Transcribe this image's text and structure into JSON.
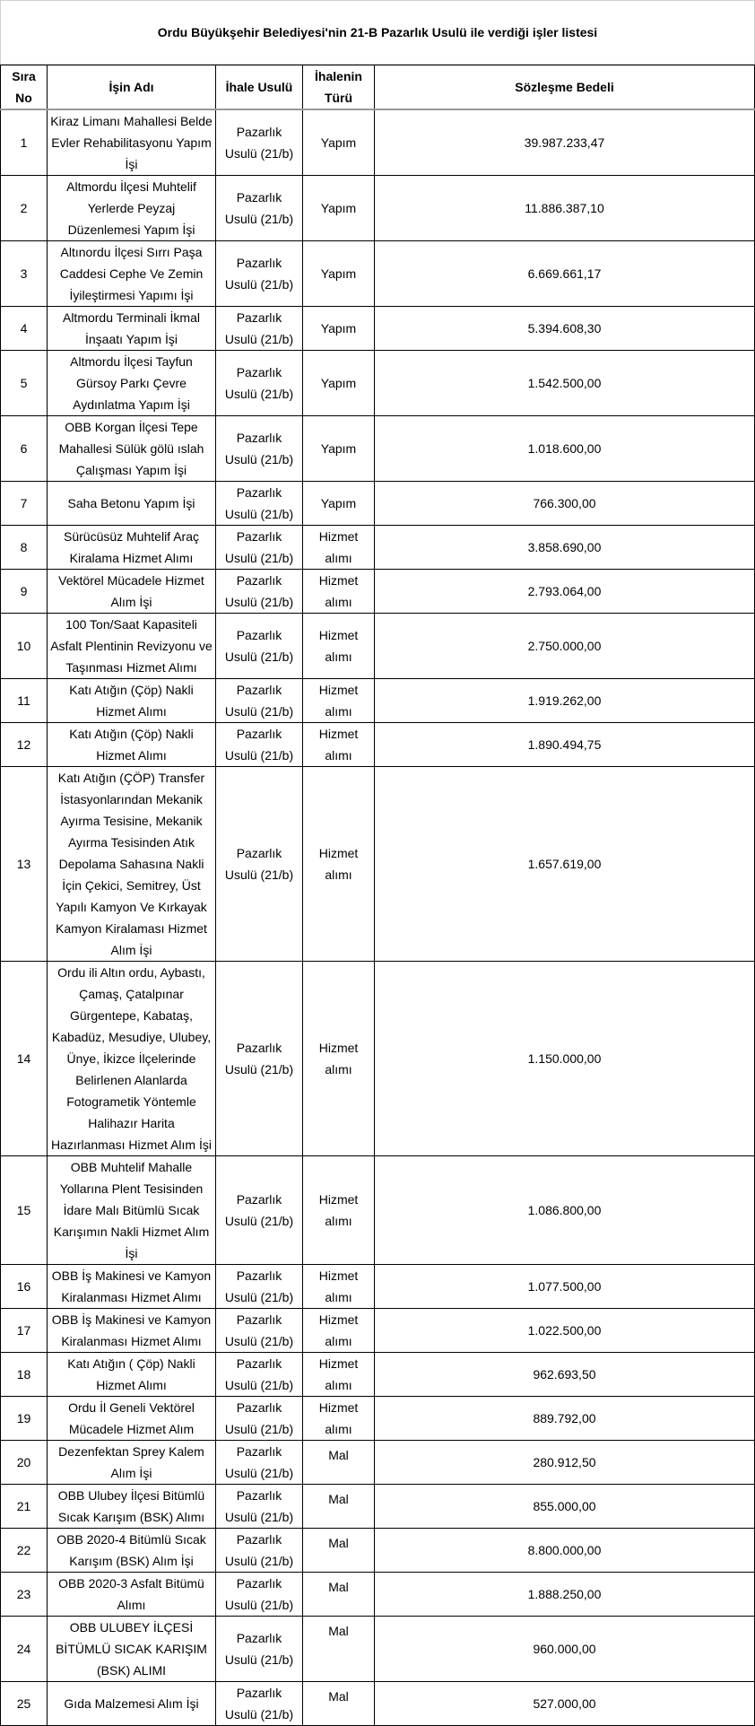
{
  "title": "Ordu Büyükşehir Belediyesi'nin 21-B Pazarlık Usulü ile verdiği işler listesi",
  "headers": [
    "Sıra No",
    "İşin Adı",
    "İhale Usulü",
    "İhalenin Türü",
    "Sözleşme Bedeli"
  ],
  "rows": [
    {
      "no": "1",
      "name": "Kiraz Limanı Mahallesi Belde Evler Rehabilitasyonu Yapım İşi",
      "method": "Pazarlık Usulü (21/b)",
      "type": "Yapım",
      "amount": "39.987.233,47"
    },
    {
      "no": "2",
      "name": "Altmordu İlçesi Muhtelif Yerlerde Peyzaj Düzenlemesi Yapım İşi",
      "method": "Pazarlık Usulü (21/b)",
      "type": "Yapım",
      "amount": "11.886.387,10"
    },
    {
      "no": "3",
      "name": "Altınordu İlçesi Sırrı Paşa Caddesi Cephe Ve Zemin İyileştirmesi Yapımı İşi",
      "method": "Pazarlık Usulü (21/b)",
      "type": "Yapım",
      "amount": "6.669.661,17"
    },
    {
      "no": "4",
      "name": "Altmordu Terminali İkmal İnşaatı Yapım İşi",
      "method": "Pazarlık Usulü (21/b)",
      "type": "Yapım",
      "amount": "5.394.608,30"
    },
    {
      "no": "5",
      "name": "Altmordu İlçesi Tayfun Gürsoy Parkı Çevre Aydınlatma Yapım İşi",
      "method": "Pazarlık Usulü (21/b)",
      "type": "Yapım",
      "amount": "1.542.500,00"
    },
    {
      "no": "6",
      "name": "OBB Korgan İlçesi Tepe Mahallesi Sülük gölü ıslah Çalışması Yapım İşi",
      "method": "Pazarlık Usulü (21/b)",
      "type": "Yapım",
      "amount": "1.018.600,00"
    },
    {
      "no": "7",
      "name": "Saha Betonu Yapım İşi",
      "method": "Pazarlık Usulü (21/b)",
      "type": "Yapım",
      "amount": "766.300,00"
    },
    {
      "no": "8",
      "name": "Sürücüsüz Muhtelif Araç Kiralama Hizmet Alımı",
      "method": "Pazarlık Usulü (21/b)",
      "type": "Hizmet alımı",
      "amount": "3.858.690,00"
    },
    {
      "no": "9",
      "name": "Vektörel Mücadele Hizmet Alım İşi",
      "method": "Pazarlık Usulü (21/b)",
      "type": "Hizmet alımı",
      "amount": "2.793.064,00"
    },
    {
      "no": "10",
      "name": "100 Ton/Saat Kapasiteli Asfalt Plentinin Revizyonu ve Taşınması Hizmet Alımı",
      "method": "Pazarlık Usulü (21/b)",
      "type": "Hizmet alımı",
      "amount": "2.750.000,00"
    },
    {
      "no": "11",
      "name": "Katı Atığın (Çöp) Nakli Hizmet Alımı",
      "method": "Pazarlık Usulü (21/b)",
      "type": "Hizmet alımı",
      "amount": "1.919.262,00"
    },
    {
      "no": "12",
      "name": "Katı Atığın (Çöp) Nakli Hizmet Alımı",
      "method": "Pazarlık Usulü (21/b)",
      "type": "Hizmet alımı",
      "amount": "1.890.494,75"
    },
    {
      "no": "13",
      "name": "Katı Atığın (ÇÖP) Transfer İstasyonlarından Mekanik Ayırma Tesisine, Mekanik Ayırma Tesisinden Atık Depolama Sahasına Nakli İçin Çekici, Semitrey, Üst Yapılı Kamyon Ve Kırkayak Kamyon Kiralaması Hizmet Alım İşi",
      "method": "Pazarlık Usulü (21/b)",
      "type": "Hizmet alımı",
      "amount": "1.657.619,00"
    },
    {
      "no": "14",
      "name": "Ordu ili Altın ordu, Aybastı, Çamaş, Çatalpınar Gürgentepe, Kabataş, Kabadüz, Mesudiye, Ulubey, Ünye, İkizce İlçelerinde Belirlenen Alanlarda Fotogrametik Yöntemle Halihazır Harita Hazırlanması Hizmet Alım İşi",
      "method": "Pazarlık Usulü (21/b)",
      "type": "Hizmet alımı",
      "amount": "1.150.000,00"
    },
    {
      "no": "15",
      "name": "OBB Muhtelif Mahalle Yollarına Plent Tesisinden İdare Malı Bitümlü Sıcak Karışımın Nakli Hizmet Alım İşi",
      "method": "Pazarlık Usulü (21/b)",
      "type": "Hizmet alımı",
      "amount": "1.086.800,00"
    },
    {
      "no": "16",
      "name": "OBB İş Makinesi ve Kamyon Kiralanması Hizmet Alımı",
      "method": "Pazarlık Usulü (21/b)",
      "type": "Hizmet alımı",
      "amount": "1.077.500,00"
    },
    {
      "no": "17",
      "name": "OBB İş Makinesi ve Kamyon Kiralanması Hizmet Alımı",
      "method": "Pazarlık Usulü (21/b)",
      "type": "Hizmet alımı",
      "amount": "1.022.500,00"
    },
    {
      "no": "18",
      "name": "Katı Atığın ( Çöp) Nakli Hizmet Alımı",
      "method": "Pazarlık Usulü (21/b)",
      "type": "Hizmet alımı",
      "amount": "962.693,50"
    },
    {
      "no": "19",
      "name": "Ordu İl Geneli Vektörel Mücadele Hizmet Alım",
      "method": "Pazarlık Usulü (21/b)",
      "type": "Hizmet alımı",
      "amount": "889.792,00"
    },
    {
      "no": "20",
      "name": "Dezenfektan Sprey Kalem Alım İşi",
      "method": "Pazarlık Usulü (21/b)",
      "type": "Mal",
      "amount": "280.912,50"
    },
    {
      "no": "21",
      "name": "OBB Ulubey İlçesi Bitümlü Sıcak Karışım (BSK) Alımı",
      "method": "Pazarlık Usulü (21/b)",
      "type": "Mal",
      "amount": "855.000,00"
    },
    {
      "no": "22",
      "name": "OBB 2020-4 Bitümlü Sıcak Karışım (BSK) Alım İşi",
      "method": "Pazarlık Usulü (21/b)",
      "type": "Mal",
      "amount": "8.800.000,00"
    },
    {
      "no": "23",
      "name": "OBB 2020-3 Asfalt Bitümü Alımı",
      "method": "Pazarlık Usulü (21/b)",
      "type": "Mal",
      "amount": "1.888.250,00"
    },
    {
      "no": "24",
      "name": "OBB ULUBEY İLÇESİ BİTÜMLÜ SICAK KARIŞIM (BSK) ALIMI",
      "method": "Pazarlık Usulü (21/b)",
      "type": "Mal",
      "amount": "960.000,00"
    },
    {
      "no": "25",
      "name": "Gıda Malzemesi Alım İşi",
      "method": "Pazarlık Usulü (21/b)",
      "type": "Mal",
      "amount": "527.000,00"
    }
  ]
}
